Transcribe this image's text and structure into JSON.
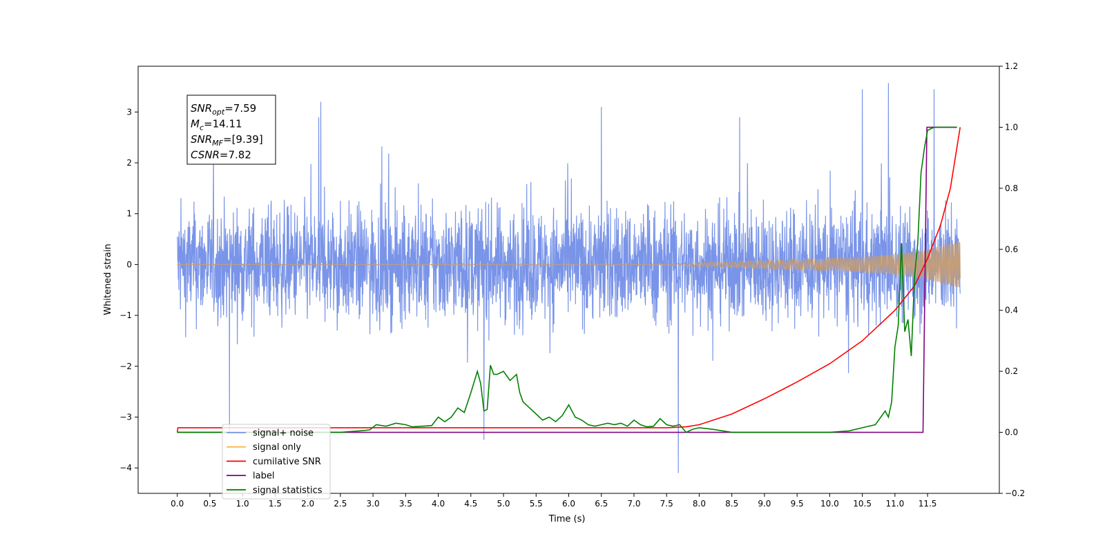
{
  "chart_data": {
    "type": "line",
    "xlabel": "Time (s)",
    "ylabel": "Whitened strain",
    "xlim": [
      -0.6,
      12.6
    ],
    "ylim": [
      -4.5,
      3.9
    ],
    "y2lim": [
      -0.2,
      1.2
    ],
    "x_ticks": [
      "0.0",
      "0.5",
      "1.0",
      "1.5",
      "2.0",
      "2.5",
      "3.0",
      "3.5",
      "4.0",
      "4.5",
      "5.0",
      "5.5",
      "6.0",
      "6.5",
      "7.0",
      "7.5",
      "8.0",
      "8.5",
      "9.0",
      "9.5",
      "10.0",
      "10.5",
      "11.0",
      "11.5"
    ],
    "y_ticks": [
      "3",
      "2",
      "1",
      "0",
      "−1",
      "−2",
      "−3",
      "−4"
    ],
    "y2_ticks": [
      "1.2",
      "1.0",
      "0.8",
      "0.6",
      "0.4",
      "0.2",
      "0.0",
      "−0.2"
    ],
    "annotation": {
      "lines": [
        {
          "name": "SNR",
          "sub": "opt",
          "value": "=7.59"
        },
        {
          "name": "M",
          "sub": "c",
          "value": "=14.11"
        },
        {
          "name": "SNR",
          "sub": "MF",
          "value": "=[9.39]"
        },
        {
          "name": "CSNR",
          "sub": "",
          "value": "=7.82"
        }
      ]
    },
    "legend": {
      "placement": "lower-left",
      "entries": [
        "signal+ noise",
        "signal only",
        "cumilative SNR",
        "label",
        "signal statistics"
      ]
    },
    "colors": {
      "signal_noise": "#7994e8",
      "signal_only": "#ffb347",
      "signal_only_fill": "#c49e78",
      "cumulative_snr": "#ff0000",
      "label": "#800080",
      "signal_statistics": "#008000"
    },
    "series": [
      {
        "name": "signal+ noise",
        "axis": "left",
        "description_values": "noise band approx amplitude 1.6 with spikes to 3.57 and -4.1",
        "x_range": [
          0.0,
          12.0
        ],
        "spikes": [
          [
            0.8,
            -3.3
          ],
          [
            2.2,
            3.2
          ],
          [
            4.7,
            -3.45
          ],
          [
            7.68,
            -4.1
          ],
          [
            10.9,
            3.57
          ],
          [
            10.5,
            3.45
          ],
          [
            11.6,
            3.45
          ],
          [
            6.5,
            3.1
          ]
        ]
      },
      {
        "name": "signal only",
        "axis": "left",
        "x_range": [
          0.0,
          12.0
        ],
        "envelope": [
          [
            0.0,
            0.0
          ],
          [
            7.5,
            0.01
          ],
          [
            8.0,
            0.04
          ],
          [
            9.0,
            0.08
          ],
          [
            10.0,
            0.12
          ],
          [
            10.5,
            0.15
          ],
          [
            11.0,
            0.2
          ],
          [
            11.5,
            0.3
          ],
          [
            12.0,
            0.47
          ]
        ]
      },
      {
        "name": "cumilative SNR",
        "axis": "right",
        "x": [
          0.0,
          0.01,
          7.5,
          7.8,
          8.0,
          8.5,
          9.0,
          9.5,
          10.0,
          10.5,
          11.0,
          11.3,
          11.5,
          11.7,
          11.85,
          12.0
        ],
        "y": [
          0.0,
          0.015,
          0.015,
          0.018,
          0.025,
          0.06,
          0.11,
          0.165,
          0.225,
          0.3,
          0.4,
          0.48,
          0.57,
          0.68,
          0.8,
          1.0
        ]
      },
      {
        "name": "label",
        "axis": "right",
        "x": [
          0.0,
          11.43,
          11.49,
          11.95
        ],
        "y": [
          0.0,
          0.0,
          1.0,
          1.0
        ]
      },
      {
        "name": "signal statistics",
        "axis": "right",
        "x": [
          0.0,
          2.5,
          2.8,
          2.95,
          3.05,
          3.2,
          3.35,
          3.5,
          3.6,
          3.75,
          3.9,
          4.0,
          4.1,
          4.2,
          4.3,
          4.4,
          4.5,
          4.6,
          4.65,
          4.7,
          4.75,
          4.8,
          4.85,
          4.9,
          5.0,
          5.1,
          5.2,
          5.25,
          5.3,
          5.4,
          5.5,
          5.6,
          5.7,
          5.8,
          5.9,
          6.0,
          6.1,
          6.2,
          6.3,
          6.4,
          6.5,
          6.6,
          6.7,
          6.8,
          6.9,
          7.0,
          7.1,
          7.2,
          7.3,
          7.4,
          7.5,
          7.6,
          7.7,
          7.8,
          7.9,
          8.0,
          8.2,
          8.5,
          10.0,
          10.3,
          10.5,
          10.7,
          10.85,
          10.9,
          10.95,
          11.0,
          11.05,
          11.1,
          11.15,
          11.2,
          11.25,
          11.3,
          11.35,
          11.4,
          11.45,
          11.5,
          11.55,
          11.6,
          11.65,
          11.75,
          11.95
        ],
        "y": [
          0.0,
          0.0,
          0.005,
          0.008,
          0.025,
          0.02,
          0.03,
          0.025,
          0.018,
          0.02,
          0.022,
          0.05,
          0.035,
          0.05,
          0.08,
          0.065,
          0.13,
          0.2,
          0.16,
          0.07,
          0.075,
          0.22,
          0.19,
          0.19,
          0.2,
          0.17,
          0.19,
          0.13,
          0.1,
          0.08,
          0.06,
          0.04,
          0.05,
          0.035,
          0.055,
          0.09,
          0.05,
          0.04,
          0.025,
          0.02,
          0.025,
          0.03,
          0.025,
          0.03,
          0.02,
          0.04,
          0.025,
          0.018,
          0.02,
          0.045,
          0.025,
          0.02,
          0.025,
          0.0,
          0.01,
          0.015,
          0.01,
          0.0,
          0.0,
          0.005,
          0.015,
          0.025,
          0.07,
          0.05,
          0.1,
          0.28,
          0.35,
          0.62,
          0.33,
          0.37,
          0.25,
          0.51,
          0.62,
          0.85,
          0.93,
          0.99,
          0.995,
          1.0,
          1.0,
          1.0,
          1.0
        ]
      }
    ]
  }
}
